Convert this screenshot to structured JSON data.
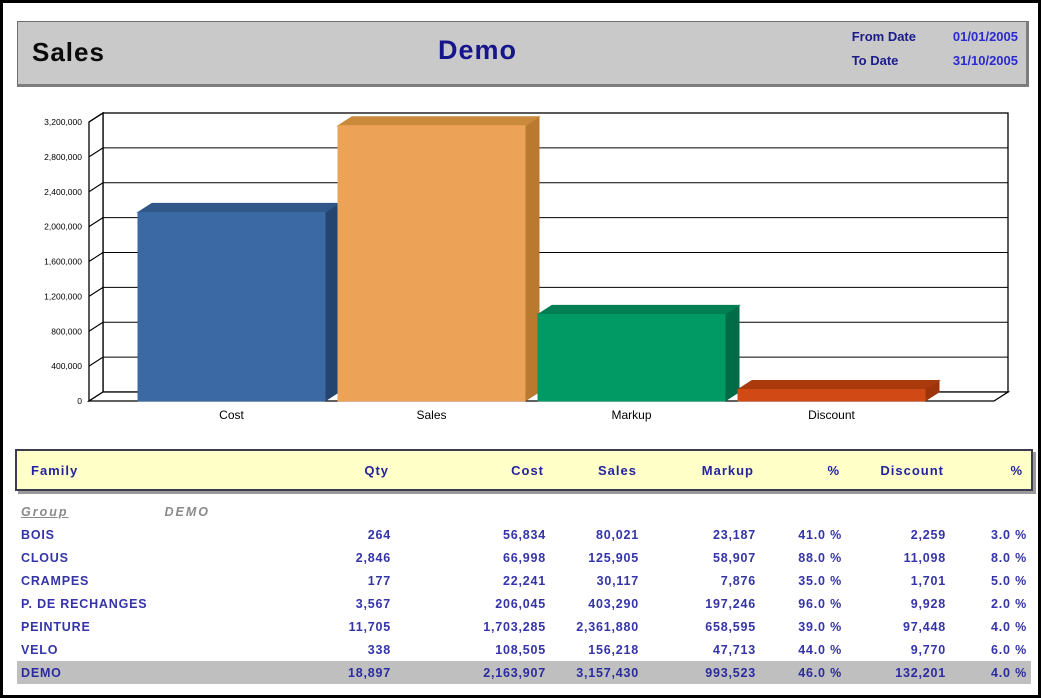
{
  "header": {
    "report_title": "Sales",
    "center_title": "Demo",
    "from_date_label": "From Date",
    "from_date_value": "01/01/2005",
    "to_date_label": "To Date",
    "to_date_value": "31/10/2005"
  },
  "chart_data": {
    "type": "bar",
    "style": "3d",
    "title": "",
    "xlabel": "",
    "ylabel": "",
    "grid": true,
    "legend": "none",
    "categories": [
      "Cost",
      "Sales",
      "Markup",
      "Discount"
    ],
    "values": [
      2163907,
      3157430,
      993523,
      132201
    ],
    "ylim": [
      0,
      3200000
    ],
    "ytick_step": 400000,
    "ytick_labels": [
      "0",
      "400,000",
      "800,000",
      "1,200,000",
      "1,600,000",
      "2,000,000",
      "2,400,000",
      "2,800,000",
      "3,200,000"
    ],
    "bar_colors": [
      {
        "front": "#3b69a3",
        "side": "#26456e",
        "top": "#2f5788"
      },
      {
        "front": "#eca357",
        "side": "#b9792f",
        "top": "#c98a3c"
      },
      {
        "front": "#019a64",
        "side": "#006b47",
        "top": "#017e53"
      },
      {
        "front": "#d14a15",
        "side": "#9e340c",
        "top": "#a83a0e"
      }
    ]
  },
  "table": {
    "columns": [
      "Family",
      "Qty",
      "Cost",
      "Sales",
      "Markup",
      "%",
      "Discount",
      "%"
    ],
    "group_label": "Group",
    "group_value": "DEMO",
    "rows": [
      {
        "family": "BOIS",
        "qty": "264",
        "cost": "56,834",
        "sales": "80,021",
        "markup": "23,187",
        "markup_pct": "41.0 %",
        "discount": "2,259",
        "discount_pct": "3.0 %"
      },
      {
        "family": "CLOUS",
        "qty": "2,846",
        "cost": "66,998",
        "sales": "125,905",
        "markup": "58,907",
        "markup_pct": "88.0 %",
        "discount": "11,098",
        "discount_pct": "8.0 %"
      },
      {
        "family": "CRAMPES",
        "qty": "177",
        "cost": "22,241",
        "sales": "30,117",
        "markup": "7,876",
        "markup_pct": "35.0 %",
        "discount": "1,701",
        "discount_pct": "5.0 %"
      },
      {
        "family": "P. DE RECHANGES",
        "qty": "3,567",
        "cost": "206,045",
        "sales": "403,290",
        "markup": "197,246",
        "markup_pct": "96.0 %",
        "discount": "9,928",
        "discount_pct": "2.0 %"
      },
      {
        "family": "PEINTURE",
        "qty": "11,705",
        "cost": "1,703,285",
        "sales": "2,361,880",
        "markup": "658,595",
        "markup_pct": "39.0 %",
        "discount": "97,448",
        "discount_pct": "4.0 %"
      },
      {
        "family": "VELO",
        "qty": "338",
        "cost": "108,505",
        "sales": "156,218",
        "markup": "47,713",
        "markup_pct": "44.0 %",
        "discount": "9,770",
        "discount_pct": "6.0 %"
      }
    ],
    "total_row": {
      "family": "DEMO",
      "qty": "18,897",
      "cost": "2,163,907",
      "sales": "3,157,430",
      "markup": "993,523",
      "markup_pct": "46.0 %",
      "discount": "132,201",
      "discount_pct": "4.0 %"
    }
  },
  "colors": {
    "header_band_bg": "#c9c9c9",
    "table_header_bg": "#ffffc8",
    "table_header_text": "#2323a0",
    "body_text": "#3434a8",
    "total_row_bg": "#bfbfbf",
    "group_text": "#8a8a8a",
    "title_navy": "#16168c",
    "date_value_blue": "#2b2bd0"
  }
}
